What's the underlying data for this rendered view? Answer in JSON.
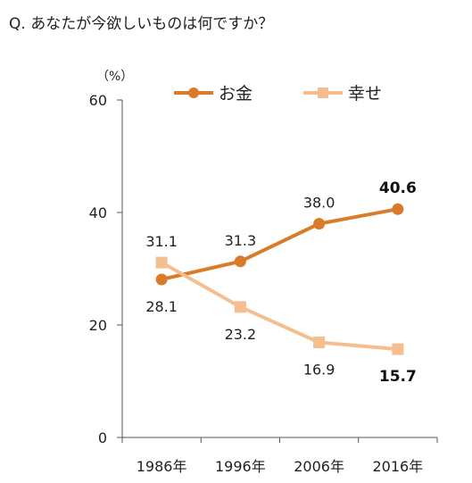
{
  "question": "Q. あなたが今欲しいものは何ですか？",
  "chart_data": {
    "type": "line",
    "unit_label": "（%）",
    "categories": [
      "1986年",
      "1996年",
      "2006年",
      "2016年"
    ],
    "ylim": [
      0,
      60
    ],
    "yticks": [
      "0",
      "20",
      "40",
      "60"
    ],
    "legend_position": "top",
    "series": [
      {
        "name": "お金",
        "color": "#D97B29",
        "marker": "circle",
        "values": [
          28.1,
          31.3,
          38.0,
          40.6
        ],
        "labels": [
          "28.1",
          "31.3",
          "38.0",
          "40.6"
        ],
        "label_pos": [
          "below",
          "above",
          "above",
          "above"
        ],
        "bold_last": true
      },
      {
        "name": "幸せ",
        "color": "#F5BE8F",
        "marker": "square",
        "values": [
          31.1,
          23.2,
          16.9,
          15.7
        ],
        "labels": [
          "31.1",
          "23.2",
          "16.9",
          "15.7"
        ],
        "label_pos": [
          "above",
          "below",
          "below",
          "below"
        ],
        "bold_last": true
      }
    ]
  }
}
